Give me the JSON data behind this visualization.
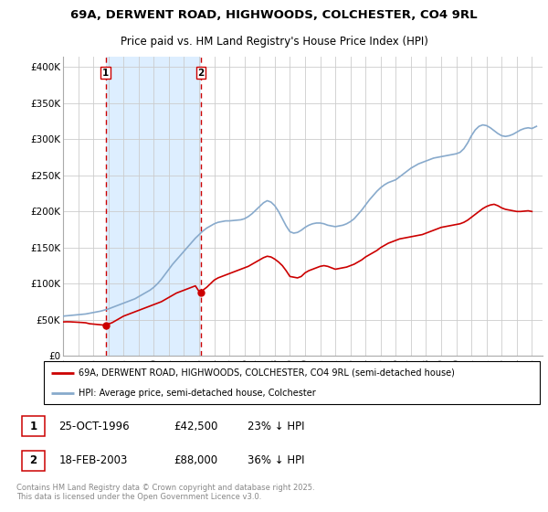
{
  "title_line1": "69A, DERWENT ROAD, HIGHWOODS, COLCHESTER, CO4 9RL",
  "title_line2": "Price paid vs. HM Land Registry's House Price Index (HPI)",
  "ylabel_ticks": [
    "£0",
    "£50K",
    "£100K",
    "£150K",
    "£200K",
    "£250K",
    "£300K",
    "£350K",
    "£400K"
  ],
  "ytick_values": [
    0,
    50000,
    100000,
    150000,
    200000,
    250000,
    300000,
    350000,
    400000
  ],
  "ylim": [
    0,
    415000
  ],
  "xlim_start": 1994.0,
  "xlim_end": 2025.7,
  "purchase1_x": 1996.81,
  "purchase1_y": 42500,
  "purchase2_x": 2003.12,
  "purchase2_y": 88000,
  "red_line_color": "#cc0000",
  "blue_line_color": "#88aacc",
  "shade_color": "#ddeeff",
  "grid_color": "#cccccc",
  "legend_label_red": "69A, DERWENT ROAD, HIGHWOODS, COLCHESTER, CO4 9RL (semi-detached house)",
  "legend_label_blue": "HPI: Average price, semi-detached house, Colchester",
  "table_row1": [
    "1",
    "25-OCT-1996",
    "£42,500",
    "23% ↓ HPI"
  ],
  "table_row2": [
    "2",
    "18-FEB-2003",
    "£88,000",
    "36% ↓ HPI"
  ],
  "footer": "Contains HM Land Registry data © Crown copyright and database right 2025.\nThis data is licensed under the Open Government Licence v3.0.",
  "red_x": [
    1994.0,
    1994.25,
    1994.5,
    1994.75,
    1995.0,
    1995.25,
    1995.5,
    1995.75,
    1996.0,
    1996.25,
    1996.5,
    1996.81,
    1997.0,
    1997.25,
    1997.5,
    1997.75,
    1998.0,
    1998.25,
    1998.5,
    1998.75,
    1999.0,
    1999.25,
    1999.5,
    1999.75,
    2000.0,
    2000.25,
    2000.5,
    2000.75,
    2001.0,
    2001.25,
    2001.5,
    2001.75,
    2002.0,
    2002.25,
    2002.5,
    2002.75,
    2003.0,
    2003.12,
    2003.25,
    2003.5,
    2003.75,
    2004.0,
    2004.25,
    2004.5,
    2004.75,
    2005.0,
    2005.25,
    2005.5,
    2005.75,
    2006.0,
    2006.25,
    2006.5,
    2006.75,
    2007.0,
    2007.25,
    2007.5,
    2007.75,
    2008.0,
    2008.25,
    2008.5,
    2008.75,
    2009.0,
    2009.25,
    2009.5,
    2009.75,
    2010.0,
    2010.25,
    2010.5,
    2010.75,
    2011.0,
    2011.25,
    2011.5,
    2011.75,
    2012.0,
    2012.25,
    2012.5,
    2012.75,
    2013.0,
    2013.25,
    2013.5,
    2013.75,
    2014.0,
    2014.25,
    2014.5,
    2014.75,
    2015.0,
    2015.25,
    2015.5,
    2015.75,
    2016.0,
    2016.25,
    2016.5,
    2016.75,
    2017.0,
    2017.25,
    2017.5,
    2017.75,
    2018.0,
    2018.25,
    2018.5,
    2018.75,
    2019.0,
    2019.25,
    2019.5,
    2019.75,
    2020.0,
    2020.25,
    2020.5,
    2020.75,
    2021.0,
    2021.25,
    2021.5,
    2021.75,
    2022.0,
    2022.25,
    2022.5,
    2022.75,
    2023.0,
    2023.25,
    2023.5,
    2023.75,
    2024.0,
    2024.25,
    2024.5,
    2024.75,
    2025.0
  ],
  "red_y": [
    47000,
    47200,
    47100,
    46800,
    46500,
    46200,
    45800,
    44500,
    44000,
    43500,
    43000,
    42500,
    44000,
    46000,
    49000,
    52000,
    55000,
    57000,
    59000,
    61000,
    63000,
    65000,
    67000,
    69000,
    71000,
    73000,
    75000,
    78000,
    81000,
    84000,
    87000,
    89000,
    91000,
    93000,
    95000,
    97000,
    89000,
    88000,
    91000,
    95000,
    100000,
    105000,
    108000,
    110000,
    112000,
    114000,
    116000,
    118000,
    120000,
    122000,
    124000,
    127000,
    130000,
    133000,
    136000,
    138000,
    137000,
    134000,
    130000,
    125000,
    118000,
    110000,
    109000,
    108000,
    110000,
    115000,
    118000,
    120000,
    122000,
    124000,
    125000,
    124000,
    122000,
    120000,
    121000,
    122000,
    123000,
    125000,
    127000,
    130000,
    133000,
    137000,
    140000,
    143000,
    146000,
    150000,
    153000,
    156000,
    158000,
    160000,
    162000,
    163000,
    164000,
    165000,
    166000,
    167000,
    168000,
    170000,
    172000,
    174000,
    176000,
    178000,
    179000,
    180000,
    181000,
    182000,
    183000,
    185000,
    188000,
    192000,
    196000,
    200000,
    204000,
    207000,
    209000,
    210000,
    208000,
    205000,
    203000,
    202000,
    201000,
    200000,
    200000,
    200500,
    201000,
    200000
  ],
  "blue_x": [
    1994.0,
    1994.25,
    1994.5,
    1994.75,
    1995.0,
    1995.25,
    1995.5,
    1995.75,
    1996.0,
    1996.25,
    1996.5,
    1996.75,
    1997.0,
    1997.25,
    1997.5,
    1997.75,
    1998.0,
    1998.25,
    1998.5,
    1998.75,
    1999.0,
    1999.25,
    1999.5,
    1999.75,
    2000.0,
    2000.25,
    2000.5,
    2000.75,
    2001.0,
    2001.25,
    2001.5,
    2001.75,
    2002.0,
    2002.25,
    2002.5,
    2002.75,
    2003.0,
    2003.25,
    2003.5,
    2003.75,
    2004.0,
    2004.25,
    2004.5,
    2004.75,
    2005.0,
    2005.25,
    2005.5,
    2005.75,
    2006.0,
    2006.25,
    2006.5,
    2006.75,
    2007.0,
    2007.25,
    2007.5,
    2007.75,
    2008.0,
    2008.25,
    2008.5,
    2008.75,
    2009.0,
    2009.25,
    2009.5,
    2009.75,
    2010.0,
    2010.25,
    2010.5,
    2010.75,
    2011.0,
    2011.25,
    2011.5,
    2011.75,
    2012.0,
    2012.25,
    2012.5,
    2012.75,
    2013.0,
    2013.25,
    2013.5,
    2013.75,
    2014.0,
    2014.25,
    2014.5,
    2014.75,
    2015.0,
    2015.25,
    2015.5,
    2015.75,
    2016.0,
    2016.25,
    2016.5,
    2016.75,
    2017.0,
    2017.25,
    2017.5,
    2017.75,
    2018.0,
    2018.25,
    2018.5,
    2018.75,
    2019.0,
    2019.25,
    2019.5,
    2019.75,
    2020.0,
    2020.25,
    2020.5,
    2020.75,
    2021.0,
    2021.25,
    2021.5,
    2021.75,
    2022.0,
    2022.25,
    2022.5,
    2022.75,
    2023.0,
    2023.25,
    2023.5,
    2023.75,
    2024.0,
    2024.25,
    2024.5,
    2024.75,
    2025.0,
    2025.3
  ],
  "blue_y": [
    55000,
    55500,
    56000,
    56500,
    57000,
    57500,
    58000,
    59000,
    60000,
    61000,
    62000,
    63500,
    65000,
    67000,
    69000,
    71000,
    73000,
    75000,
    77000,
    79000,
    82000,
    85000,
    88000,
    91000,
    95000,
    100000,
    106000,
    113000,
    120000,
    127000,
    133000,
    139000,
    145000,
    151000,
    157000,
    163000,
    168000,
    173000,
    177000,
    180000,
    183000,
    185000,
    186000,
    187000,
    187000,
    187500,
    188000,
    188500,
    190000,
    193000,
    197000,
    202000,
    207000,
    212000,
    215000,
    213000,
    208000,
    200000,
    190000,
    180000,
    172000,
    170000,
    171000,
    174000,
    178000,
    181000,
    183000,
    184000,
    184000,
    183000,
    181000,
    180000,
    179000,
    180000,
    181000,
    183000,
    186000,
    190000,
    196000,
    202000,
    209000,
    216000,
    222000,
    228000,
    233000,
    237000,
    240000,
    242000,
    244000,
    248000,
    252000,
    256000,
    260000,
    263000,
    266000,
    268000,
    270000,
    272000,
    274000,
    275000,
    276000,
    277000,
    278000,
    279000,
    280000,
    282000,
    287000,
    295000,
    305000,
    313000,
    318000,
    320000,
    319000,
    316000,
    312000,
    308000,
    305000,
    304000,
    305000,
    307000,
    310000,
    313000,
    315000,
    316000,
    315000,
    318000
  ]
}
